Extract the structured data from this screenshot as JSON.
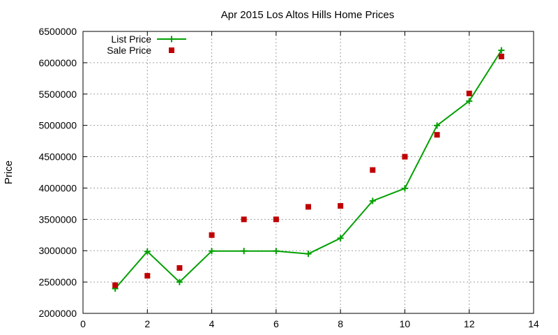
{
  "chart_data": {
    "type": "line",
    "title": "Apr 2015 Los Altos Hills Home Prices",
    "xlabel": "",
    "ylabel": "Price",
    "xlim": [
      0,
      14
    ],
    "ylim": [
      2000000,
      6500000
    ],
    "x_ticks": [
      0,
      2,
      4,
      6,
      8,
      10,
      12,
      14
    ],
    "y_ticks": [
      2000000,
      2500000,
      3000000,
      3500000,
      4000000,
      4500000,
      5000000,
      5500000,
      6000000,
      6500000
    ],
    "x_tick_labels": [
      "0",
      "2",
      "4",
      "6",
      "8",
      "10",
      "12",
      "14"
    ],
    "y_tick_labels": [
      "2000000",
      "2500000",
      "3000000",
      "3500000",
      "4000000",
      "4500000",
      "5000000",
      "5500000",
      "6000000",
      "6500000"
    ],
    "grid": true,
    "legend_position": "top-left",
    "series": [
      {
        "name": "List Price",
        "style": "line-with-plus-markers",
        "color": "#00a000",
        "x": [
          1,
          2,
          3,
          4,
          5,
          6,
          7,
          8,
          9,
          10,
          11,
          12,
          13
        ],
        "values": [
          2395000,
          2988000,
          2500000,
          2995000,
          2995000,
          2995000,
          2950000,
          3200000,
          3795000,
          3995000,
          4998000,
          5388000,
          6198000
        ]
      },
      {
        "name": "Sale Price",
        "style": "square-markers",
        "color": "#c00000",
        "x": [
          1,
          2,
          3,
          4,
          5,
          6,
          7,
          8,
          9,
          10,
          11,
          12,
          13
        ],
        "values": [
          2450000,
          2600000,
          2725000,
          3250000,
          3500000,
          3500000,
          3700000,
          3715000,
          4288000,
          4500000,
          4850000,
          5510000,
          6100000
        ]
      }
    ]
  }
}
